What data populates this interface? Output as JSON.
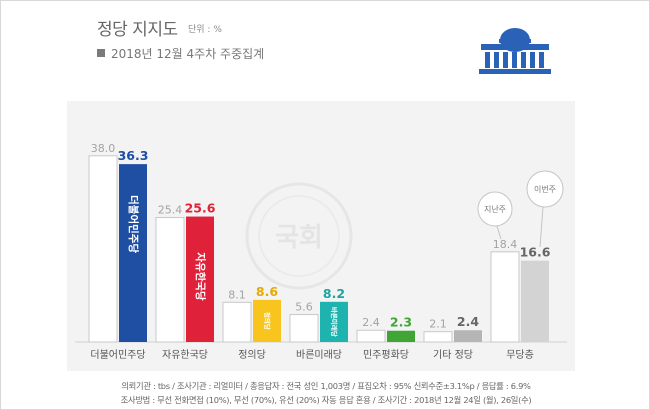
{
  "title": "정당 지지도",
  "unit": "단위 : %",
  "subtitle": "2018년 12월 4주차 주중집계",
  "footnote": {
    "line1": "의뢰기관 : tbs / 조사기관 : 리얼미터 / 총응답자 : 전국 성인 1,003명 / 표집오차 : 95% 신뢰수준±3.1%p / 응답률 : 6.9%",
    "line2": "조사방법 : 무선 전화면접 (10%), 무선 (70%), 유선 (20%) 자동 응답 혼용 / 조사기간 : 2018년 12월 24일 (월), 26일(수)"
  },
  "colors": {
    "더불어민주당": "#1f4fa3",
    "자유한국당": "#e0213a",
    "정의당": "#f7c51e",
    "바른미래당": "#1fb3b0",
    "민주평화당": "#3fa535",
    "기타 정당": "#b5b5b5",
    "무당층": "#d3d3d3",
    "previous_week": "#ffffff",
    "label_previous": "#a3a3a3",
    "label_current": {
      "더불어민주당": "#1f4fa3",
      "자유한국당": "#e0213a",
      "정의당": "#e9a900",
      "바른미래당": "#1fa3a0",
      "민주평화당": "#3fa535",
      "기타 정당": "#666666",
      "무당층": "#666666"
    }
  },
  "chart_data": {
    "type": "bar",
    "categories": [
      "더불어민주당",
      "자유한국당",
      "정의당",
      "바른미래당",
      "민주평화당",
      "기타 정당",
      "무당층"
    ],
    "series": [
      {
        "name": "지난주",
        "values": [
          38.0,
          25.4,
          8.1,
          5.6,
          2.4,
          2.1,
          18.4
        ]
      },
      {
        "name": "이번주",
        "values": [
          36.3,
          25.6,
          8.6,
          8.2,
          2.3,
          2.4,
          16.6
        ]
      }
    ],
    "value_labels_previous": [
      "38.0",
      "25.4",
      "8.1",
      "5.6",
      "2.4",
      "2.1",
      "18.4"
    ],
    "value_labels_current": [
      "36.3",
      "25.6",
      "8.6",
      "8.2",
      "2.3",
      "2.4",
      "16.6"
    ],
    "bar_logos": [
      "더불어민주당",
      "자유한국당",
      "정의당",
      "바른미래당",
      "",
      "",
      ""
    ],
    "legend_bubbles": {
      "previous": "지난주",
      "current": "이번주"
    },
    "watermark": "국회",
    "ylim": [
      0,
      40
    ],
    "grid": false
  }
}
